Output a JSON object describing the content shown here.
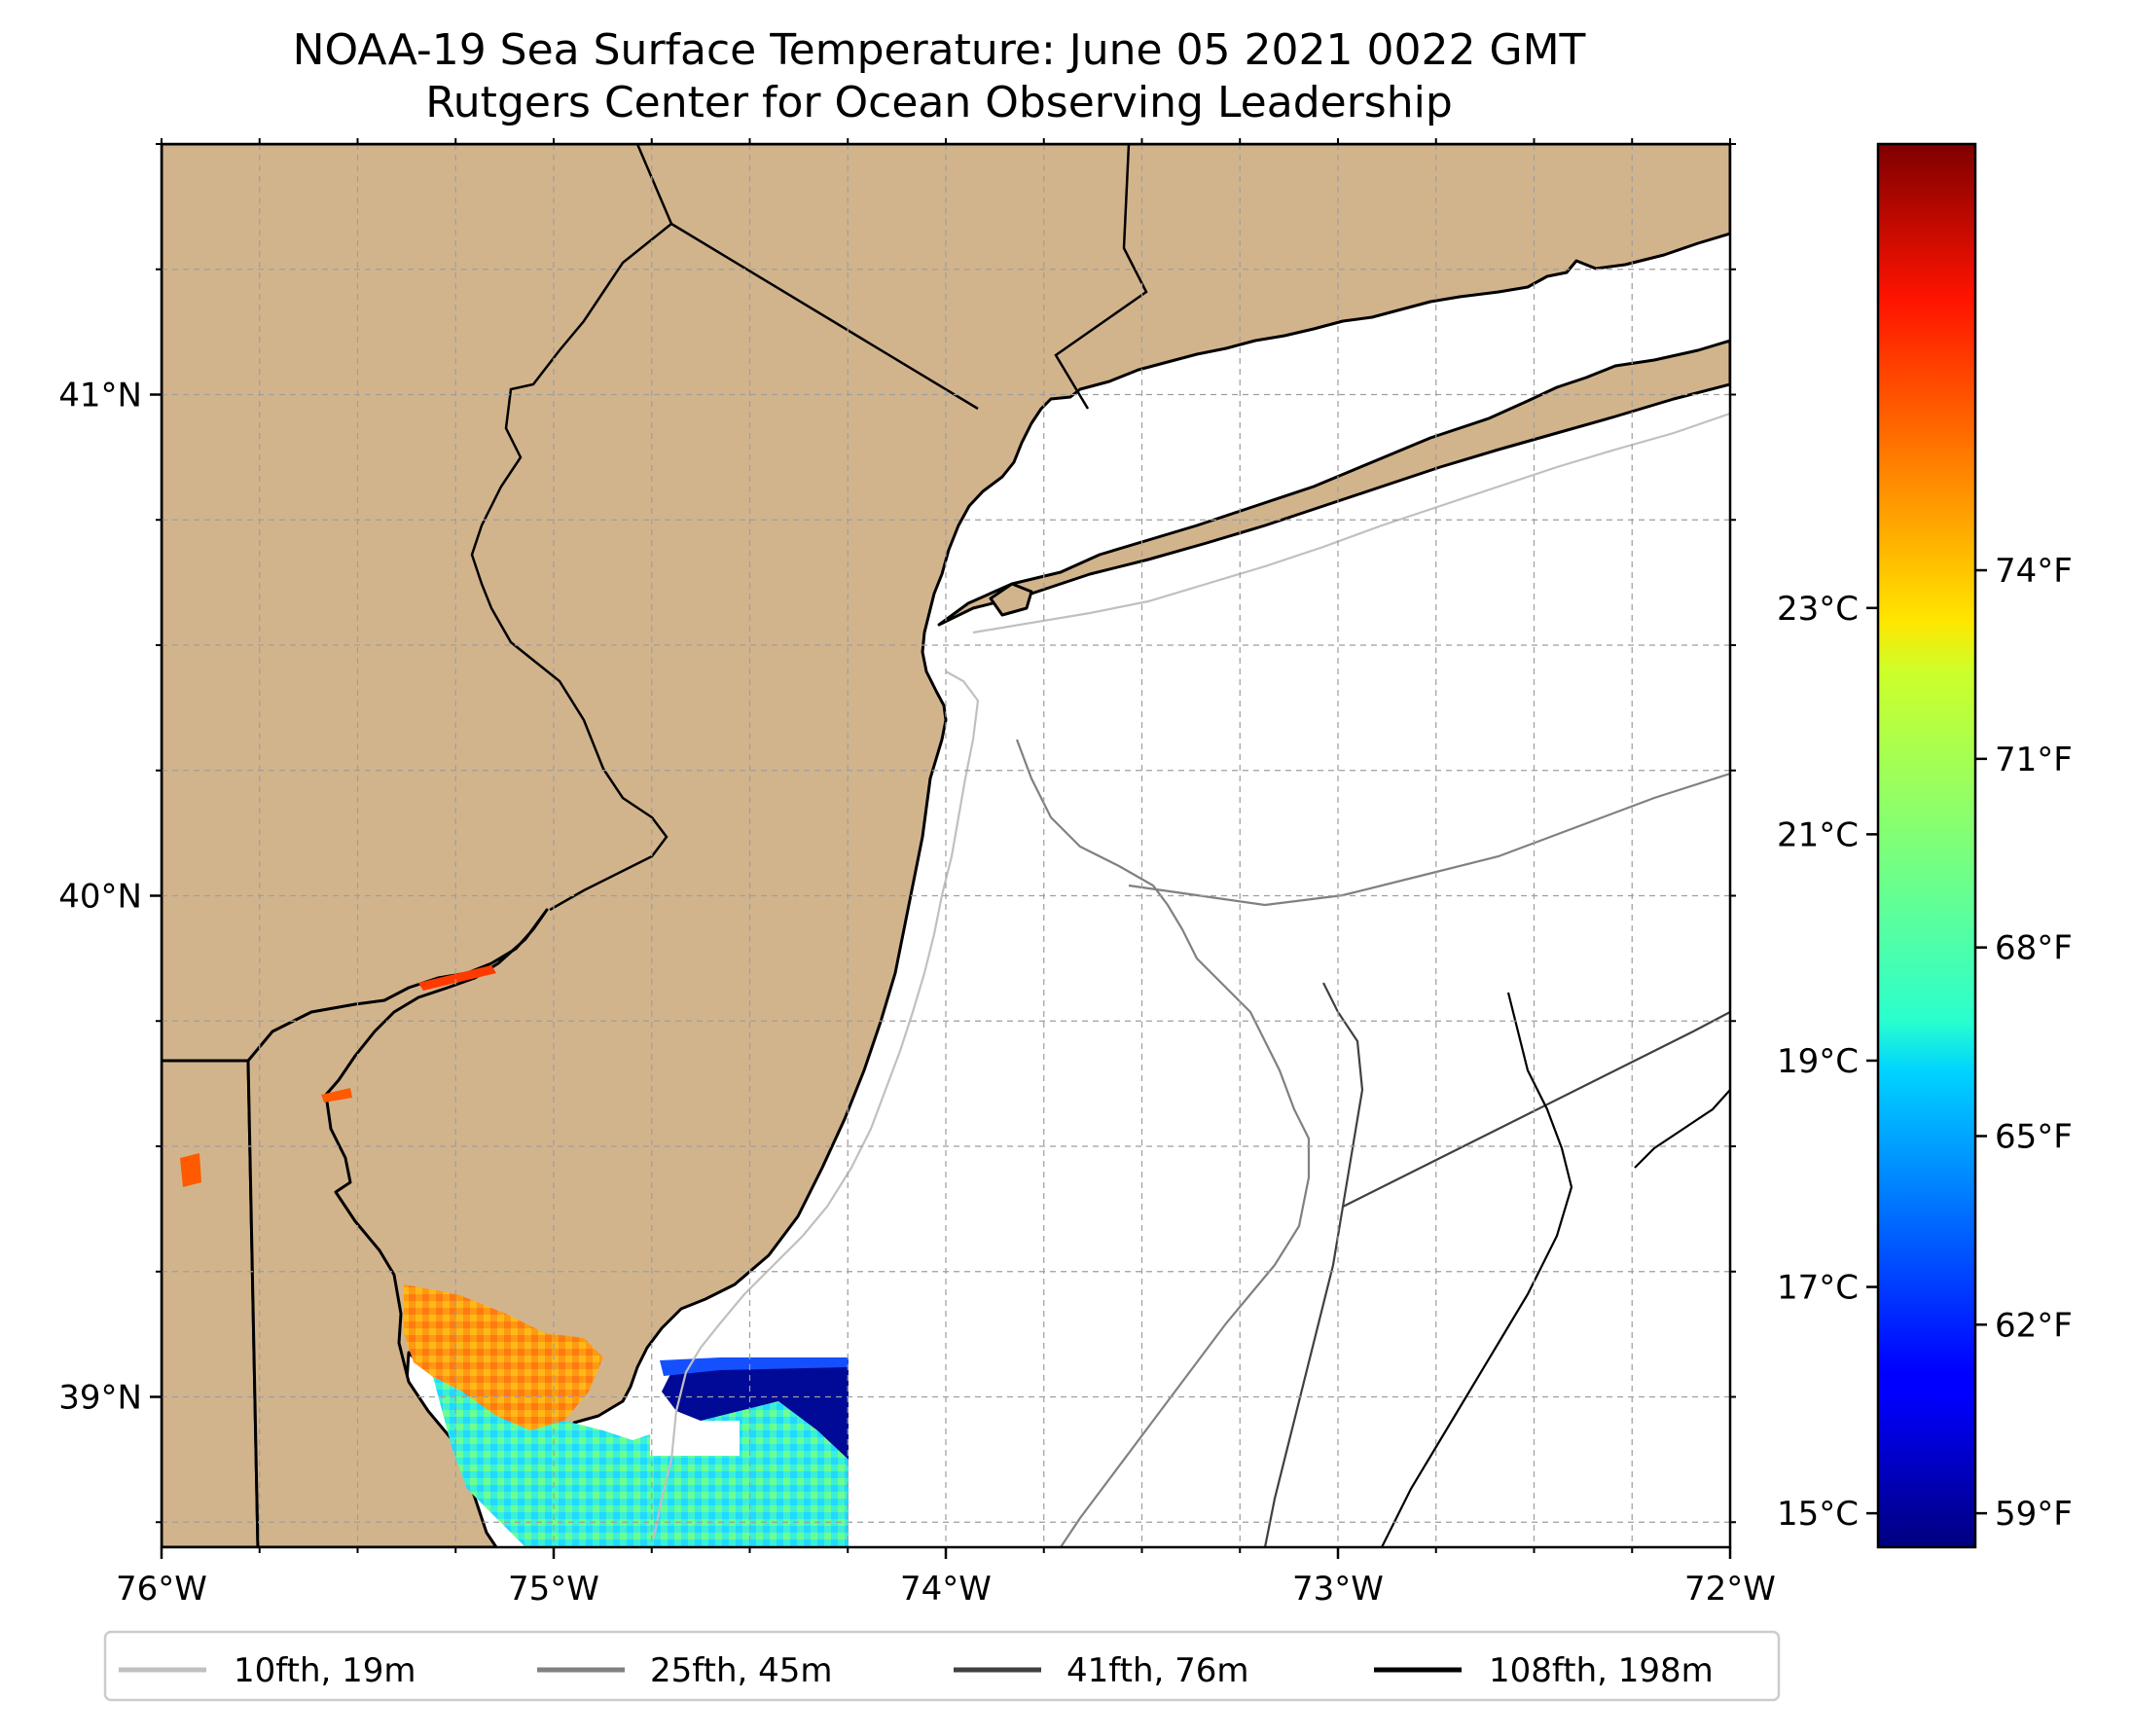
{
  "title": {
    "line1": "NOAA-19 Sea Surface Temperature: June 05 2021 0022 GMT",
    "line2": "Rutgers Center for Ocean Observing Leadership"
  },
  "map": {
    "lon_range": [
      -76,
      -72
    ],
    "lat_range": [
      38.7,
      41.5
    ],
    "x_ticks": [
      {
        "lon": -76,
        "label": "76°W"
      },
      {
        "lon": -75,
        "label": "75°W"
      },
      {
        "lon": -74,
        "label": "74°W"
      },
      {
        "lon": -73,
        "label": "73°W"
      },
      {
        "lon": -72,
        "label": "72°W"
      }
    ],
    "y_ticks": [
      {
        "lat": 41,
        "label": "41°N"
      },
      {
        "lat": 40,
        "label": "40°N"
      },
      {
        "lat": 39,
        "label": "39°N"
      }
    ],
    "gridlines": true,
    "land_color": "#d2b48c",
    "ocean_color": "#ffffff"
  },
  "colorbar": {
    "colormap": "jet",
    "celsius_range": [
      14.7,
      27.1
    ],
    "celsius_ticks": [
      {
        "value": 15,
        "label": "15°C"
      },
      {
        "value": 17,
        "label": "17°C"
      },
      {
        "value": 19,
        "label": "19°C"
      },
      {
        "value": 21,
        "label": "21°C"
      },
      {
        "value": 23,
        "label": "23°C"
      }
    ],
    "fahrenheit_ticks": [
      {
        "value": 59,
        "label": "59°F"
      },
      {
        "value": 62,
        "label": "62°F"
      },
      {
        "value": 65,
        "label": "65°F"
      },
      {
        "value": 68,
        "label": "68°F"
      },
      {
        "value": 71,
        "label": "71°F"
      },
      {
        "value": 74,
        "label": "74°F"
      }
    ]
  },
  "legend": {
    "placement": "bottom",
    "entries": [
      {
        "label": "10fth, 19m",
        "color": "#c0c0c0"
      },
      {
        "label": "25fth, 45m",
        "color": "#808080"
      },
      {
        "label": "41fth, 76m",
        "color": "#404040"
      },
      {
        "label": "108fth, 198m",
        "color": "#000000"
      }
    ]
  }
}
